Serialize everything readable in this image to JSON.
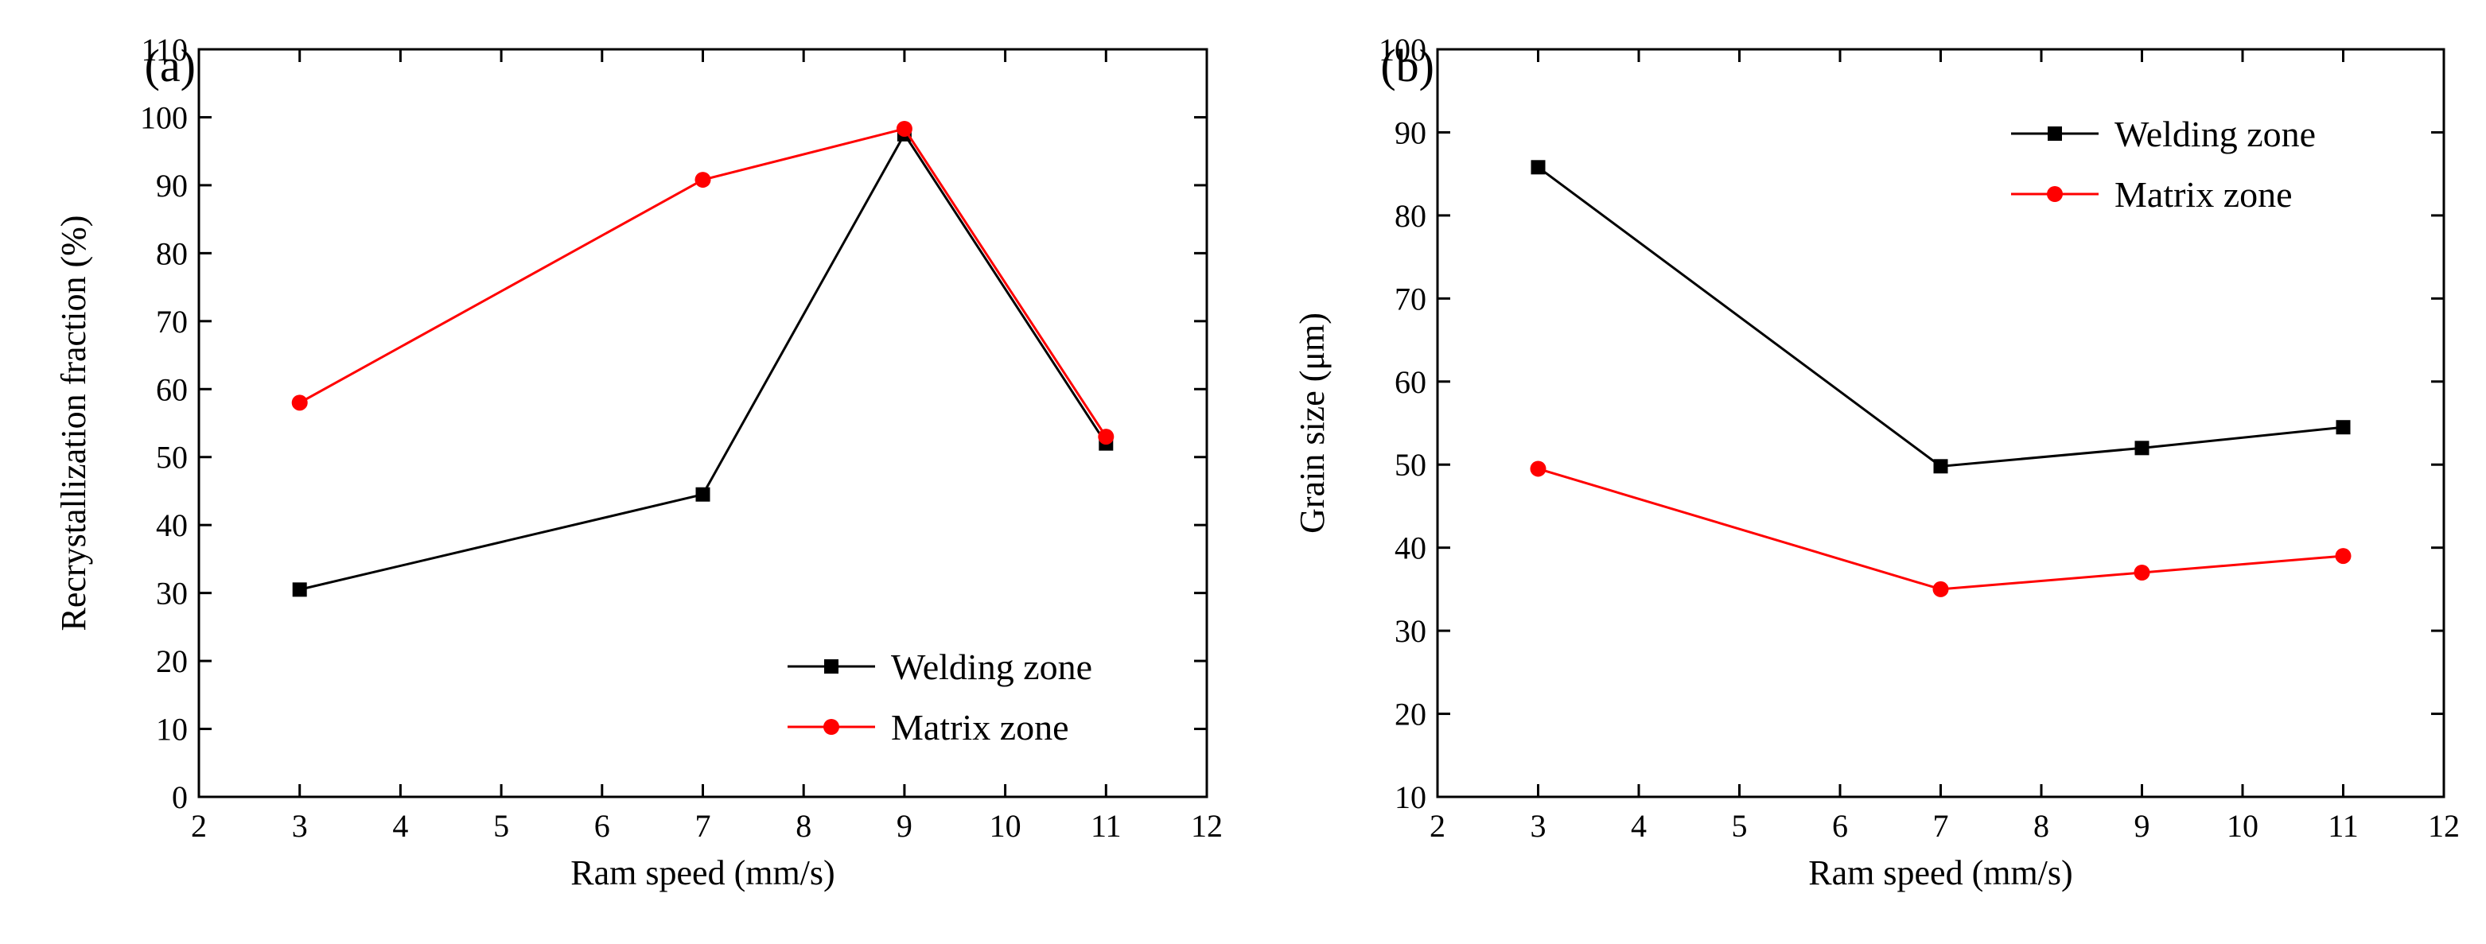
{
  "chart_data": [
    {
      "panel_label": "(a)",
      "type": "line",
      "title": "",
      "xlabel": "Ram speed (mm/s)",
      "ylabel": "Recrystallization fraction (%)",
      "xlim": [
        2,
        12
      ],
      "ylim": [
        0,
        110
      ],
      "xticks": [
        2,
        3,
        4,
        5,
        6,
        7,
        8,
        9,
        10,
        11,
        12
      ],
      "yticks": [
        0,
        10,
        20,
        30,
        40,
        50,
        60,
        70,
        80,
        90,
        100,
        110
      ],
      "grid": false,
      "legend_position": "bottom-right",
      "series": [
        {
          "name": "Welding zone",
          "color": "#000000",
          "marker": "square",
          "x": [
            3,
            7,
            9,
            11
          ],
          "y": [
            30.5,
            44.5,
            97.5,
            52
          ]
        },
        {
          "name": "Matrix zone",
          "color": "#ff0000",
          "marker": "circle",
          "x": [
            3,
            7,
            9,
            11
          ],
          "y": [
            58,
            90.8,
            98.3,
            53
          ]
        }
      ]
    },
    {
      "panel_label": "(b)",
      "type": "line",
      "title": "",
      "xlabel": "Ram speed (mm/s)",
      "ylabel": "Grain size (μm)",
      "xlim": [
        2,
        12
      ],
      "ylim": [
        10,
        100
      ],
      "xticks": [
        2,
        3,
        4,
        5,
        6,
        7,
        8,
        9,
        10,
        11,
        12
      ],
      "yticks": [
        10,
        20,
        30,
        40,
        50,
        60,
        70,
        80,
        90,
        100
      ],
      "grid": false,
      "legend_position": "top-right",
      "series": [
        {
          "name": "Welding zone",
          "color": "#000000",
          "marker": "square",
          "x": [
            3,
            7,
            9,
            11
          ],
          "y": [
            85.8,
            49.8,
            52,
            54.5
          ]
        },
        {
          "name": "Matrix zone",
          "color": "#ff0000",
          "marker": "circle",
          "x": [
            3,
            7,
            9,
            11
          ],
          "y": [
            49.5,
            35,
            37,
            39
          ]
        }
      ]
    }
  ]
}
